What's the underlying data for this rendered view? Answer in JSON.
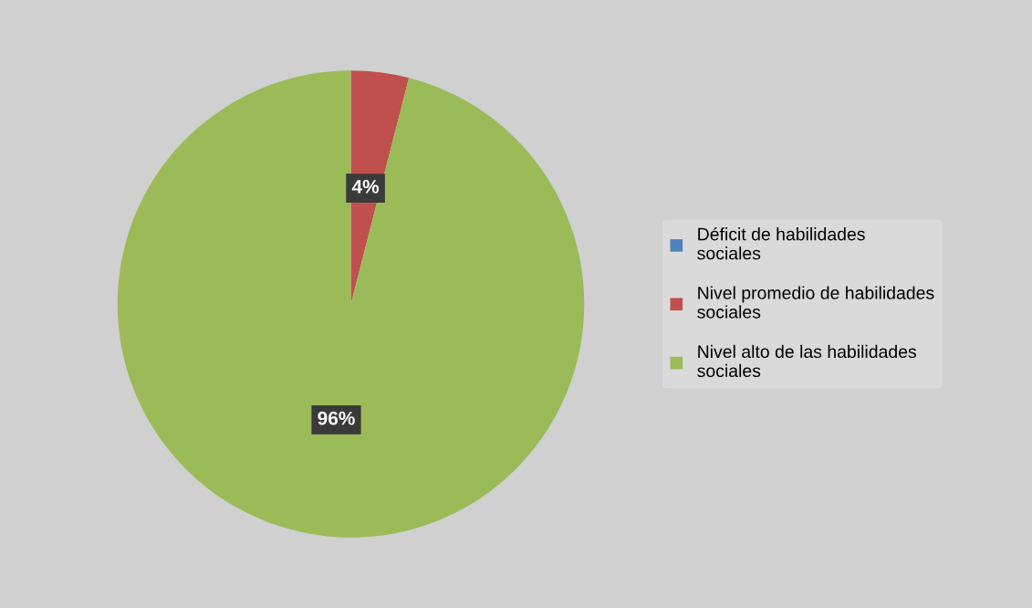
{
  "chart_data": {
    "type": "pie",
    "categories": [
      "Déficit de habilidades sociales",
      "Nivel promedio de habilidades sociales",
      "Nivel alto de las habilidades sociales"
    ],
    "values": [
      0,
      4,
      96
    ],
    "colors": [
      "#4f81bd",
      "#c0504d",
      "#9bbb59"
    ],
    "value_labels": [
      null,
      "4%",
      "96%"
    ],
    "legend": "right"
  }
}
